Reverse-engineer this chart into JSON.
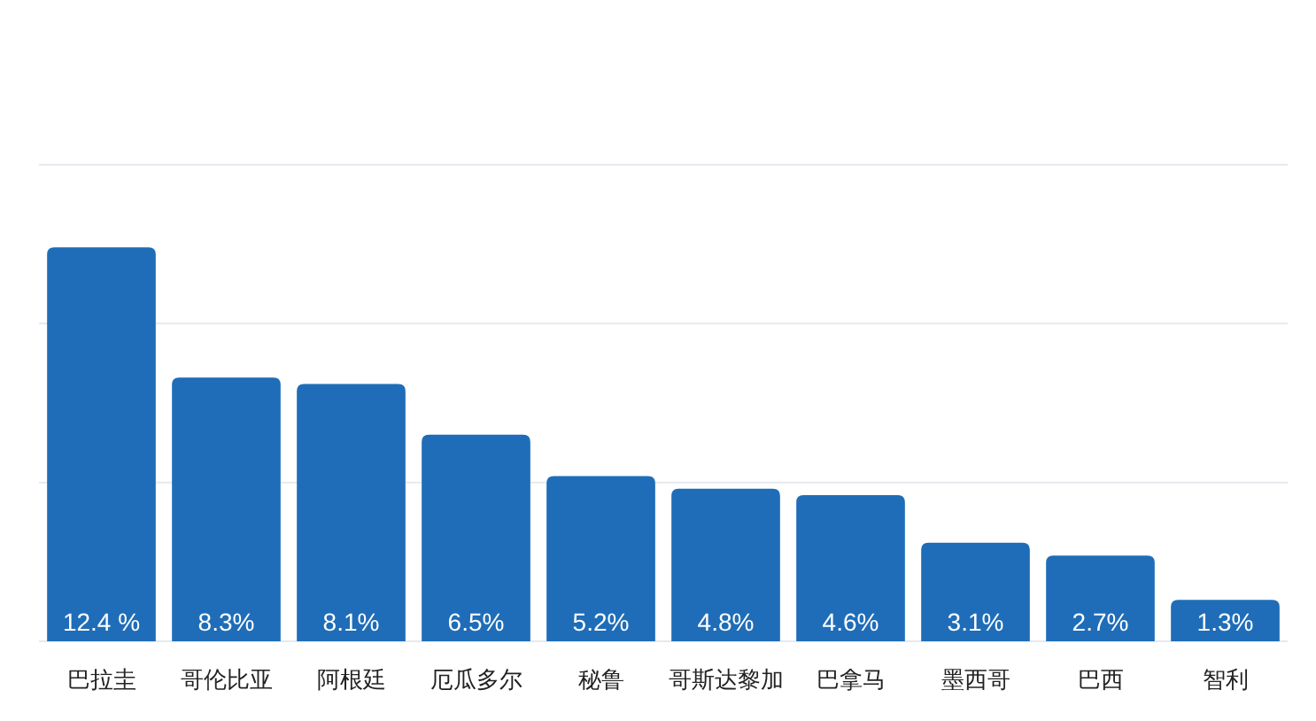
{
  "chart_data": {
    "type": "bar",
    "categories": [
      "巴拉圭",
      "哥伦比亚",
      "阿根廷",
      "厄瓜多尔",
      "秘鲁",
      "哥斯达黎加",
      "巴拿马",
      "墨西哥",
      "巴西",
      "智利"
    ],
    "values": [
      12.4,
      8.3,
      8.1,
      6.5,
      5.2,
      4.8,
      4.6,
      3.1,
      2.7,
      1.3
    ],
    "value_labels": [
      "12.4 %",
      "8.3%",
      "8.1%",
      "6.5%",
      "5.2%",
      "4.8%",
      "4.6%",
      "3.1%",
      "2.7%",
      "1.3%"
    ],
    "color": "#1f6db8",
    "ylim": [
      0,
      15
    ],
    "yticks": [
      {
        "value": 0,
        "label": null
      },
      {
        "value": 5,
        "label": null
      },
      {
        "value": 10,
        "label": null
      },
      {
        "value": 15,
        "label": null
      }
    ],
    "grid": "y",
    "tick_labels": "x"
  }
}
